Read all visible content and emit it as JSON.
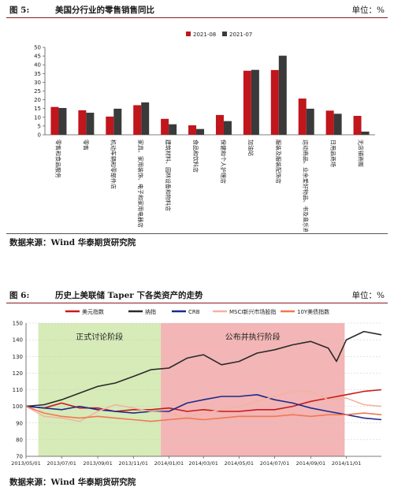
{
  "fig5": {
    "number": "图 5:",
    "title": "美国分行业的零售销售同比",
    "unit": "单位：%",
    "source": "数据来源：Wind 华泰期货研究院"
  },
  "fig6": {
    "number": "图 6:",
    "title": "历史上美联储 Taper 下各类资产的走势",
    "unit": "单位：%",
    "source": "数据来源：Wind   华泰期货研究院",
    "phase1": "正式讨论阶段",
    "phase2": "公布并执行阶段"
  },
  "chart_data": [
    {
      "type": "bar",
      "title": "",
      "colors": [
        "#c0161c",
        "#3a3a3a"
      ],
      "legend_position": "top-center",
      "categories": [
        "零售和食品服务",
        "零售",
        "机动车辆和零部件店",
        "家具、家用装饰、电子和家用电器店",
        "建筑材料、园林设备和物料店",
        "食品和饮料店",
        "保健和个人护理店",
        "加油站",
        "服装及服装配饰店",
        "运动商品、业余爱好物品、书及音乐商店",
        "日用品商场",
        "无店铺商贩"
      ],
      "series": [
        {
          "name": "2021-08",
          "values": [
            15.9,
            14.0,
            10.4,
            16.9,
            9.1,
            5.4,
            11.3,
            36.6,
            37.0,
            20.7,
            13.8,
            10.8
          ]
        },
        {
          "name": "2021-07",
          "values": [
            15.3,
            12.6,
            14.9,
            18.5,
            6.0,
            3.3,
            7.8,
            37.1,
            45.2,
            14.9,
            12.0,
            1.8
          ]
        }
      ],
      "ylim": [
        0,
        50
      ],
      "yticks": [
        0,
        5,
        10,
        15,
        20,
        25,
        30,
        35,
        40,
        45,
        50
      ],
      "grid": false
    },
    {
      "type": "line",
      "title": "",
      "legend_position": "top-center",
      "xlim": [
        "2013-05-01",
        "2014-12-31"
      ],
      "ylim": [
        70,
        150
      ],
      "yticks": [
        70,
        80,
        90,
        100,
        110,
        120,
        130,
        140,
        150
      ],
      "xticks": [
        "2013/05/01",
        "2013/07/01",
        "2013/09/01",
        "2013/11/01",
        "2014/01/01",
        "2014/03/01",
        "2014/05/01",
        "2014/07/01",
        "2014/09/01",
        "2014/11/01"
      ],
      "grid": true,
      "shaded_regions": [
        {
          "label": "正式讨论阶段",
          "start": "2013-05-22",
          "end": "2013-12-18",
          "color": "#d6ebb8"
        },
        {
          "label": "公布并执行阶段",
          "start": "2013-12-18",
          "end": "2014-10-29",
          "color": "#f3b5b5"
        }
      ],
      "series": [
        {
          "name": "美元指数",
          "color": "#c91a1a",
          "points": [
            [
              "2013-05-01",
              100
            ],
            [
              "2013-06-01",
              99
            ],
            [
              "2013-07-01",
              102
            ],
            [
              "2013-08-01",
              99
            ],
            [
              "2013-09-01",
              99
            ],
            [
              "2013-10-01",
              97
            ],
            [
              "2013-11-01",
              98
            ],
            [
              "2013-12-01",
              98
            ],
            [
              "2014-01-01",
              99
            ],
            [
              "2014-02-01",
              97
            ],
            [
              "2014-03-01",
              98
            ],
            [
              "2014-04-01",
              97
            ],
            [
              "2014-05-01",
              97
            ],
            [
              "2014-06-01",
              98
            ],
            [
              "2014-07-01",
              98
            ],
            [
              "2014-08-01",
              100
            ],
            [
              "2014-09-01",
              103
            ],
            [
              "2014-10-01",
              105
            ],
            [
              "2014-11-01",
              107
            ],
            [
              "2014-12-01",
              109
            ],
            [
              "2014-12-31",
              110
            ]
          ]
        },
        {
          "name": "纳指",
          "color": "#2a2a2a",
          "points": [
            [
              "2013-05-01",
              100
            ],
            [
              "2013-06-01",
              101
            ],
            [
              "2013-07-01",
              104
            ],
            [
              "2013-08-01",
              108
            ],
            [
              "2013-09-01",
              112
            ],
            [
              "2013-10-01",
              114
            ],
            [
              "2013-11-01",
              118
            ],
            [
              "2013-12-01",
              122
            ],
            [
              "2014-01-01",
              123
            ],
            [
              "2014-02-01",
              129
            ],
            [
              "2014-03-01",
              131
            ],
            [
              "2014-04-01",
              125
            ],
            [
              "2014-05-01",
              127
            ],
            [
              "2014-06-01",
              132
            ],
            [
              "2014-07-01",
              134
            ],
            [
              "2014-08-01",
              137
            ],
            [
              "2014-09-01",
              139
            ],
            [
              "2014-10-01",
              135
            ],
            [
              "2014-10-15",
              127
            ],
            [
              "2014-11-01",
              140
            ],
            [
              "2014-12-01",
              145
            ],
            [
              "2014-12-31",
              143
            ]
          ]
        },
        {
          "name": "CRB",
          "color": "#1c2a8c",
          "points": [
            [
              "2013-05-01",
              100
            ],
            [
              "2013-06-01",
              99
            ],
            [
              "2013-07-01",
              98
            ],
            [
              "2013-08-01",
              100
            ],
            [
              "2013-09-01",
              98
            ],
            [
              "2013-10-01",
              97
            ],
            [
              "2013-11-01",
              96
            ],
            [
              "2013-12-01",
              97
            ],
            [
              "2014-01-01",
              97
            ],
            [
              "2014-02-01",
              102
            ],
            [
              "2014-03-01",
              104
            ],
            [
              "2014-04-01",
              106
            ],
            [
              "2014-05-01",
              106
            ],
            [
              "2014-06-01",
              107
            ],
            [
              "2014-07-01",
              104
            ],
            [
              "2014-08-01",
              102
            ],
            [
              "2014-09-01",
              99
            ],
            [
              "2014-10-01",
              97
            ],
            [
              "2014-11-01",
              95
            ],
            [
              "2014-12-01",
              93
            ],
            [
              "2014-12-31",
              92
            ]
          ]
        },
        {
          "name": "MSCI新兴市场股指",
          "color": "#f2b4a0",
          "points": [
            [
              "2013-05-01",
              100
            ],
            [
              "2013-06-01",
              94
            ],
            [
              "2013-07-01",
              93
            ],
            [
              "2013-08-01",
              91
            ],
            [
              "2013-09-01",
              97
            ],
            [
              "2013-10-01",
              101
            ],
            [
              "2013-11-01",
              99
            ],
            [
              "2013-12-01",
              97
            ],
            [
              "2014-01-01",
              96
            ],
            [
              "2014-02-01",
              93
            ],
            [
              "2014-03-01",
              96
            ],
            [
              "2014-04-01",
              98
            ],
            [
              "2014-05-01",
              100
            ],
            [
              "2014-06-01",
              103
            ],
            [
              "2014-07-01",
              106
            ],
            [
              "2014-08-01",
              109
            ],
            [
              "2014-09-01",
              109
            ],
            [
              "2014-10-01",
              104
            ],
            [
              "2014-11-01",
              105
            ],
            [
              "2014-12-01",
              101
            ],
            [
              "2014-12-31",
              100
            ]
          ]
        },
        {
          "name": "10Y美债指数",
          "color": "#f07850",
          "points": [
            [
              "2013-05-01",
              100
            ],
            [
              "2013-06-01",
              96
            ],
            [
              "2013-07-01",
              94
            ],
            [
              "2013-08-01",
              93
            ],
            [
              "2013-09-01",
              94
            ],
            [
              "2013-10-01",
              93
            ],
            [
              "2013-11-01",
              92
            ],
            [
              "2013-12-01",
              91
            ],
            [
              "2014-01-01",
              92
            ],
            [
              "2014-02-01",
              93
            ],
            [
              "2014-03-01",
              92
            ],
            [
              "2014-04-01",
              93
            ],
            [
              "2014-05-01",
              94
            ],
            [
              "2014-06-01",
              94
            ],
            [
              "2014-07-01",
              94
            ],
            [
              "2014-08-01",
              95
            ],
            [
              "2014-09-01",
              94
            ],
            [
              "2014-10-01",
              95
            ],
            [
              "2014-11-01",
              95
            ],
            [
              "2014-12-01",
              96
            ],
            [
              "2014-12-31",
              95
            ]
          ]
        }
      ]
    }
  ]
}
